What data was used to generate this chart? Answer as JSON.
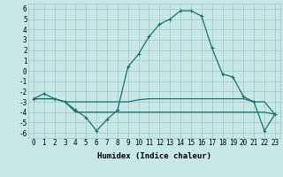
{
  "xlabel": "Humidex (Indice chaleur)",
  "xlim": [
    -0.5,
    23.5
  ],
  "ylim": [
    -6.5,
    6.5
  ],
  "xticks": [
    0,
    1,
    2,
    3,
    4,
    5,
    6,
    7,
    8,
    9,
    10,
    11,
    12,
    13,
    14,
    15,
    16,
    17,
    18,
    19,
    20,
    21,
    22,
    23
  ],
  "yticks": [
    -6,
    -5,
    -4,
    -3,
    -2,
    -1,
    0,
    1,
    2,
    3,
    4,
    5,
    6
  ],
  "bg_color": "#c8e8e8",
  "grid_color": "#96c8c8",
  "line_color": "#1a7070",
  "line1_x": [
    0,
    1,
    2,
    3,
    4,
    5,
    6,
    7,
    8,
    9,
    10,
    11,
    12,
    13,
    14,
    15,
    16,
    17,
    18,
    19,
    20,
    21,
    22,
    23
  ],
  "line1_y": [
    -2.7,
    -2.2,
    -2.7,
    -3.0,
    -3.8,
    -4.5,
    -5.8,
    -4.7,
    -3.8,
    0.4,
    1.6,
    3.3,
    4.5,
    5.0,
    5.8,
    5.8,
    5.3,
    2.2,
    -0.3,
    -0.6,
    -2.5,
    -3.0,
    -5.8,
    -4.2
  ],
  "line2_x": [
    0,
    1,
    2,
    3,
    4,
    5,
    6,
    7,
    8,
    9,
    10,
    11,
    12,
    13,
    14,
    15,
    16,
    17,
    18,
    19,
    20,
    21,
    22,
    23
  ],
  "line2_y": [
    -2.7,
    -2.7,
    -2.7,
    -3.0,
    -3.0,
    -3.0,
    -3.0,
    -3.0,
    -3.0,
    -3.0,
    -2.8,
    -2.7,
    -2.7,
    -2.7,
    -2.7,
    -2.7,
    -2.7,
    -2.7,
    -2.7,
    -2.7,
    -2.7,
    -3.0,
    -3.0,
    -4.2
  ],
  "line3_x": [
    0,
    1,
    2,
    3,
    4,
    5,
    6,
    7,
    8,
    9,
    10,
    11,
    12,
    13,
    14,
    15,
    16,
    17,
    18,
    19,
    20,
    21,
    22,
    23
  ],
  "line3_y": [
    -2.7,
    -2.7,
    -2.7,
    -3.0,
    -4.0,
    -4.0,
    -4.0,
    -4.0,
    -4.0,
    -4.0,
    -4.0,
    -4.0,
    -4.0,
    -4.0,
    -4.0,
    -4.0,
    -4.0,
    -4.0,
    -4.0,
    -4.0,
    -4.0,
    -4.0,
    -4.0,
    -4.2
  ],
  "tick_fontsize": 5.5,
  "xlabel_fontsize": 6.5
}
